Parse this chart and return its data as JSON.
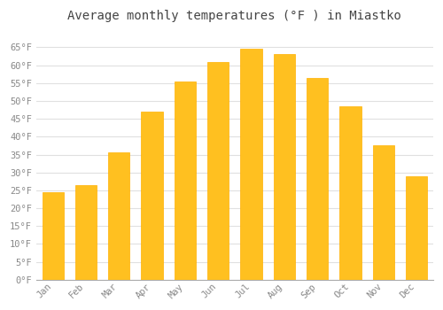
{
  "title": "Average monthly temperatures (°F ) in Miastko",
  "months": [
    "Jan",
    "Feb",
    "Mar",
    "Apr",
    "May",
    "Jun",
    "Jul",
    "Aug",
    "Sep",
    "Oct",
    "Nov",
    "Dec"
  ],
  "values": [
    24.5,
    26.5,
    35.5,
    47.0,
    55.5,
    61.0,
    64.5,
    63.0,
    56.5,
    48.5,
    37.5,
    29.0
  ],
  "bar_color_face": "#FFC020",
  "bar_color_edge": "#FFB000",
  "background_color": "#FFFFFF",
  "plot_bg_color": "#FFFFFF",
  "grid_color": "#E0E0E0",
  "tick_label_color": "#888888",
  "title_color": "#444444",
  "ylim": [
    0,
    70
  ],
  "yticks": [
    0,
    5,
    10,
    15,
    20,
    25,
    30,
    35,
    40,
    45,
    50,
    55,
    60,
    65
  ],
  "title_fontsize": 10,
  "tick_fontsize": 7.5,
  "bar_width": 0.65
}
